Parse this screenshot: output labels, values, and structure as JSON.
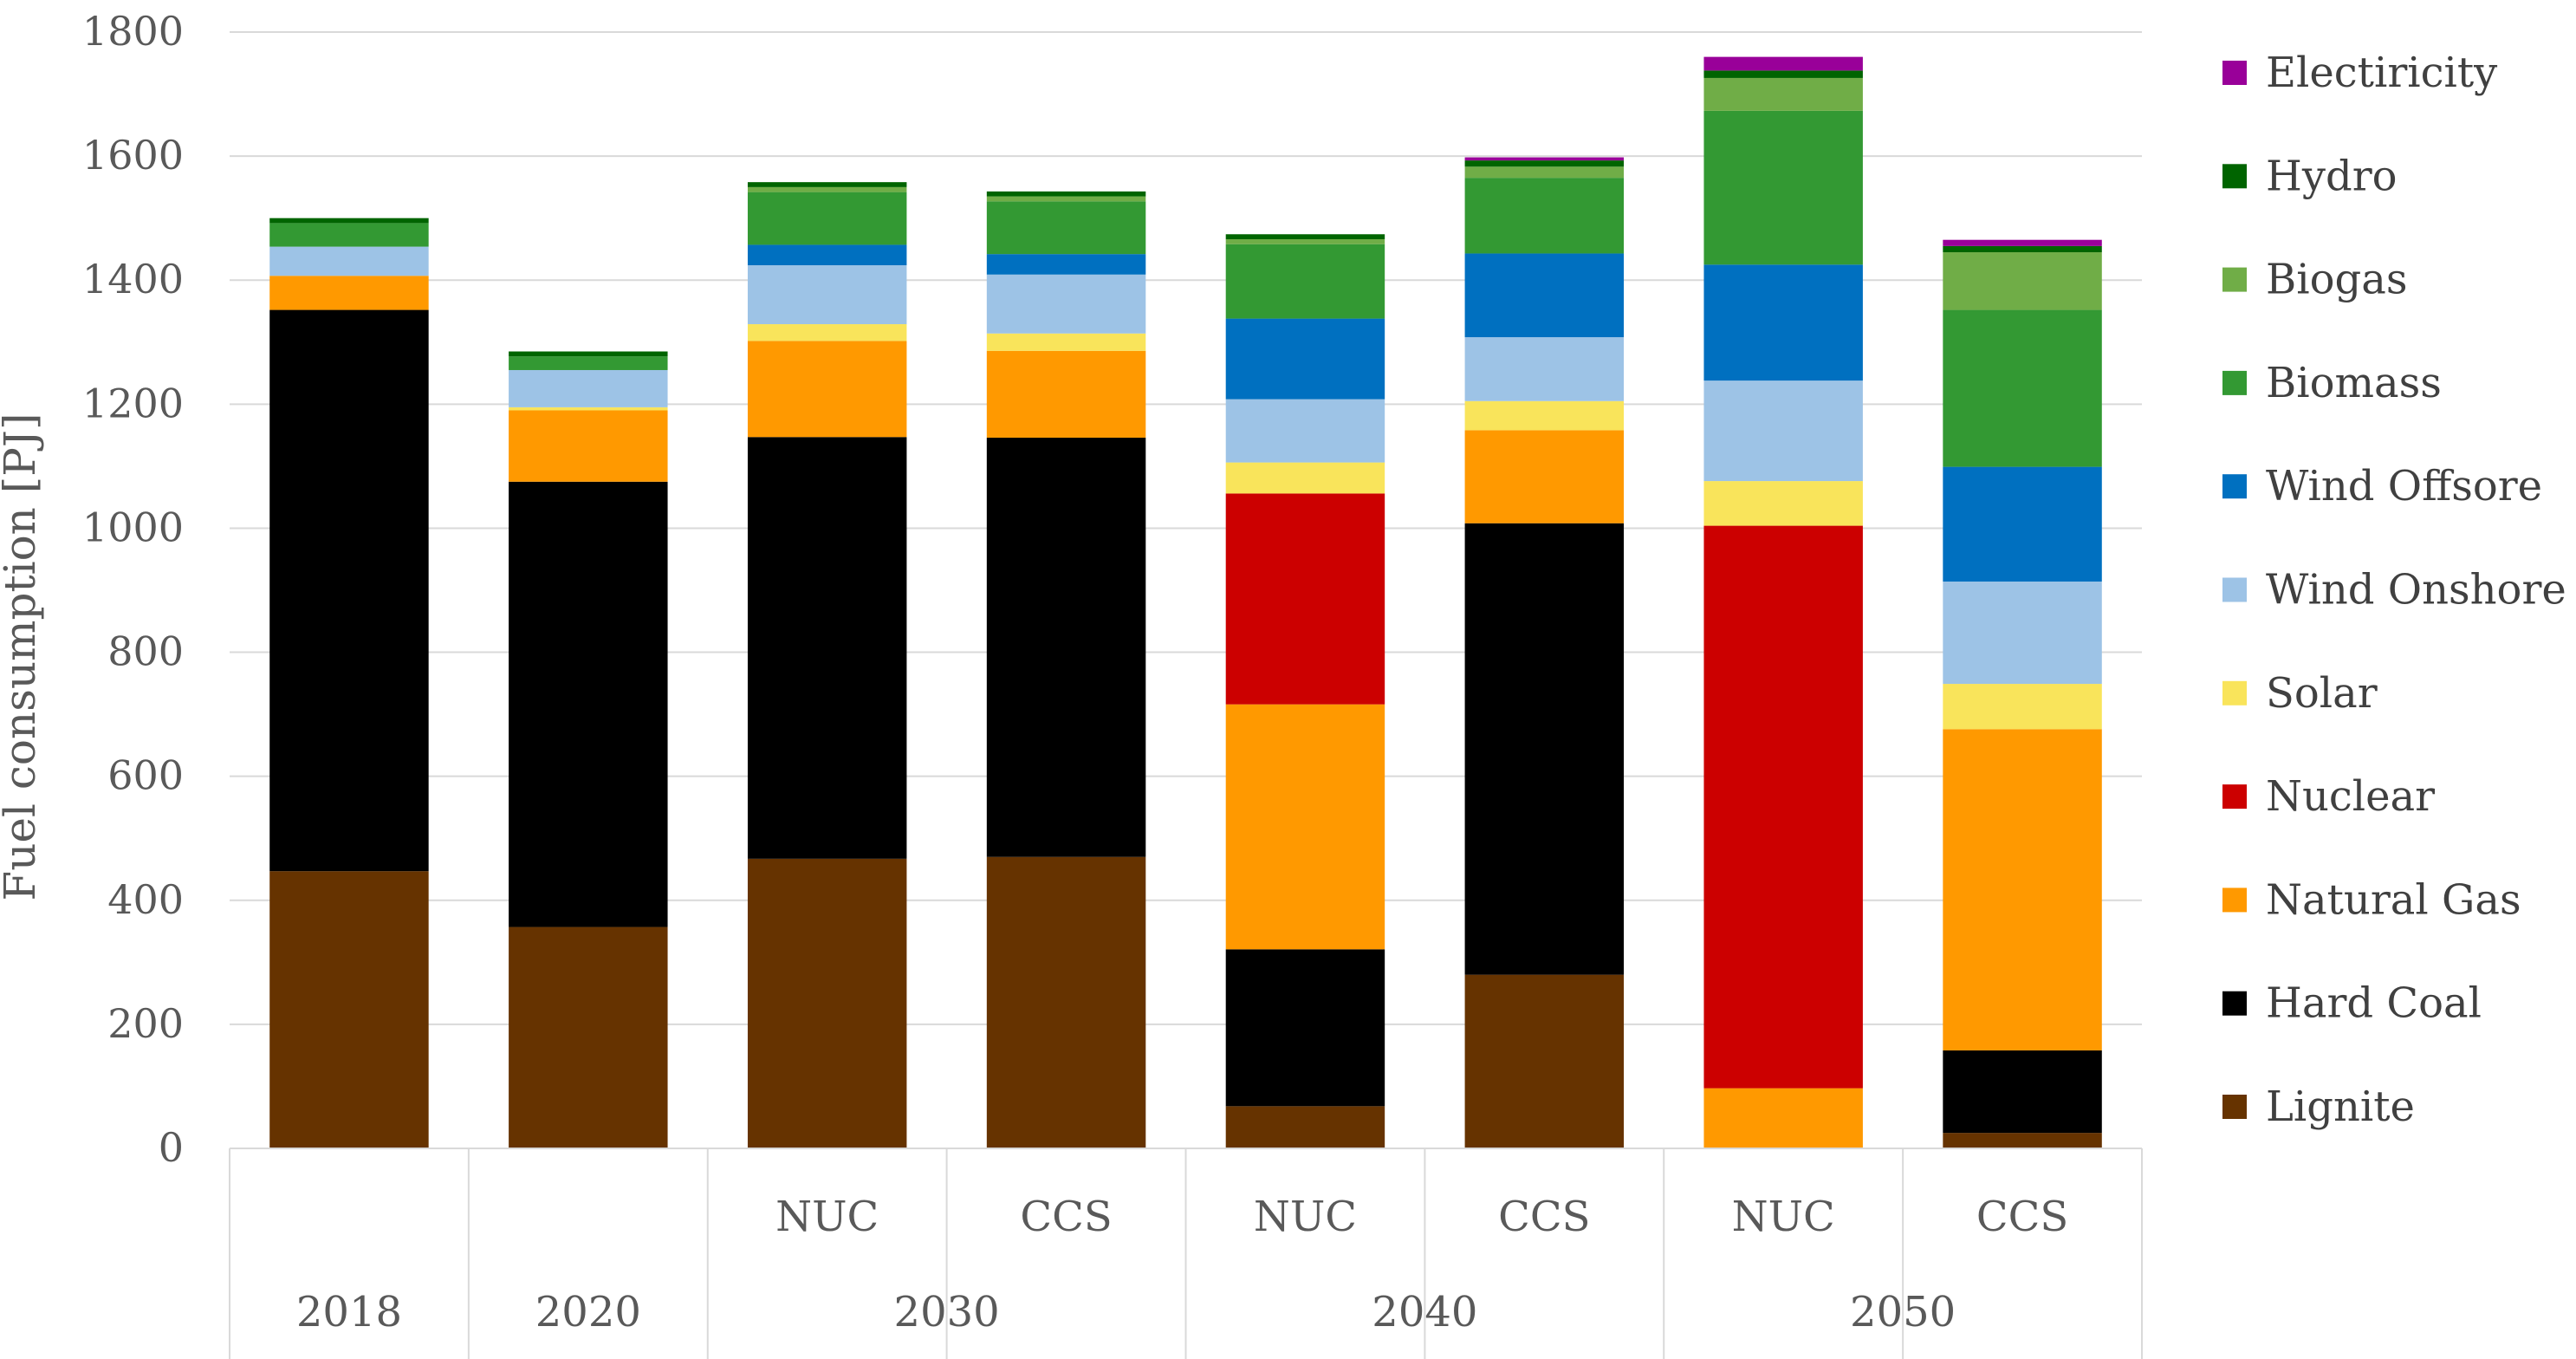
{
  "chart_data": {
    "type": "bar",
    "stacked": true,
    "title": "",
    "ylabel": "Fuel consumption [PJ]",
    "xlabel": "",
    "ylim": [
      0,
      1800
    ],
    "yticks": [
      0,
      200,
      400,
      600,
      800,
      1000,
      1200,
      1400,
      1600,
      1800
    ],
    "grid": true,
    "legend_position": "right",
    "categories": [
      {
        "group": "2018",
        "sub": ""
      },
      {
        "group": "2020",
        "sub": ""
      },
      {
        "group": "2030",
        "sub": "NUC"
      },
      {
        "group": "2030",
        "sub": "CCS"
      },
      {
        "group": "2040",
        "sub": "NUC"
      },
      {
        "group": "2040",
        "sub": "CCS"
      },
      {
        "group": "2050",
        "sub": "NUC"
      },
      {
        "group": "2050",
        "sub": "CCS"
      }
    ],
    "groups": [
      {
        "label": "2018",
        "span": 1
      },
      {
        "label": "2020",
        "span": 1
      },
      {
        "label": "2030",
        "span": 2
      },
      {
        "label": "2040",
        "span": 2
      },
      {
        "label": "2050",
        "span": 2
      }
    ],
    "series": [
      {
        "name": "Lignite",
        "color": "#663300",
        "values": [
          447,
          357,
          467,
          470,
          68,
          280,
          0,
          25
        ]
      },
      {
        "name": "Hard Coal",
        "color": "#000000",
        "values": [
          905,
          718,
          680,
          676,
          253,
          728,
          0,
          133
        ]
      },
      {
        "name": "Natural Gas",
        "color": "#FF9900",
        "values": [
          55,
          115,
          155,
          140,
          395,
          150,
          97,
          518
        ]
      },
      {
        "name": "Nuclear",
        "color": "#CC0000",
        "values": [
          0,
          0,
          0,
          0,
          340,
          0,
          907,
          0
        ]
      },
      {
        "name": "Solar",
        "color": "#F9E45B",
        "values": [
          0,
          5,
          27,
          28,
          50,
          47,
          72,
          73
        ]
      },
      {
        "name": "Wind Onshore",
        "color": "#9DC3E6",
        "values": [
          47,
          60,
          95,
          95,
          102,
          103,
          162,
          165
        ]
      },
      {
        "name": "Wind Offsore",
        "color": "#0070C0",
        "values": [
          0,
          0,
          33,
          33,
          130,
          135,
          187,
          185
        ]
      },
      {
        "name": "Biomass",
        "color": "#339933",
        "values": [
          38,
          22,
          85,
          85,
          120,
          122,
          248,
          253
        ]
      },
      {
        "name": "Biogas",
        "color": "#70AD47",
        "values": [
          0,
          0,
          8,
          8,
          8,
          18,
          53,
          93
        ]
      },
      {
        "name": "Hydro",
        "color": "#006400",
        "values": [
          8,
          8,
          8,
          8,
          8,
          10,
          12,
          10
        ]
      },
      {
        "name": "Electiricity",
        "color": "#990099",
        "values": [
          0,
          0,
          0,
          0,
          0,
          5,
          22,
          10
        ]
      }
    ]
  }
}
